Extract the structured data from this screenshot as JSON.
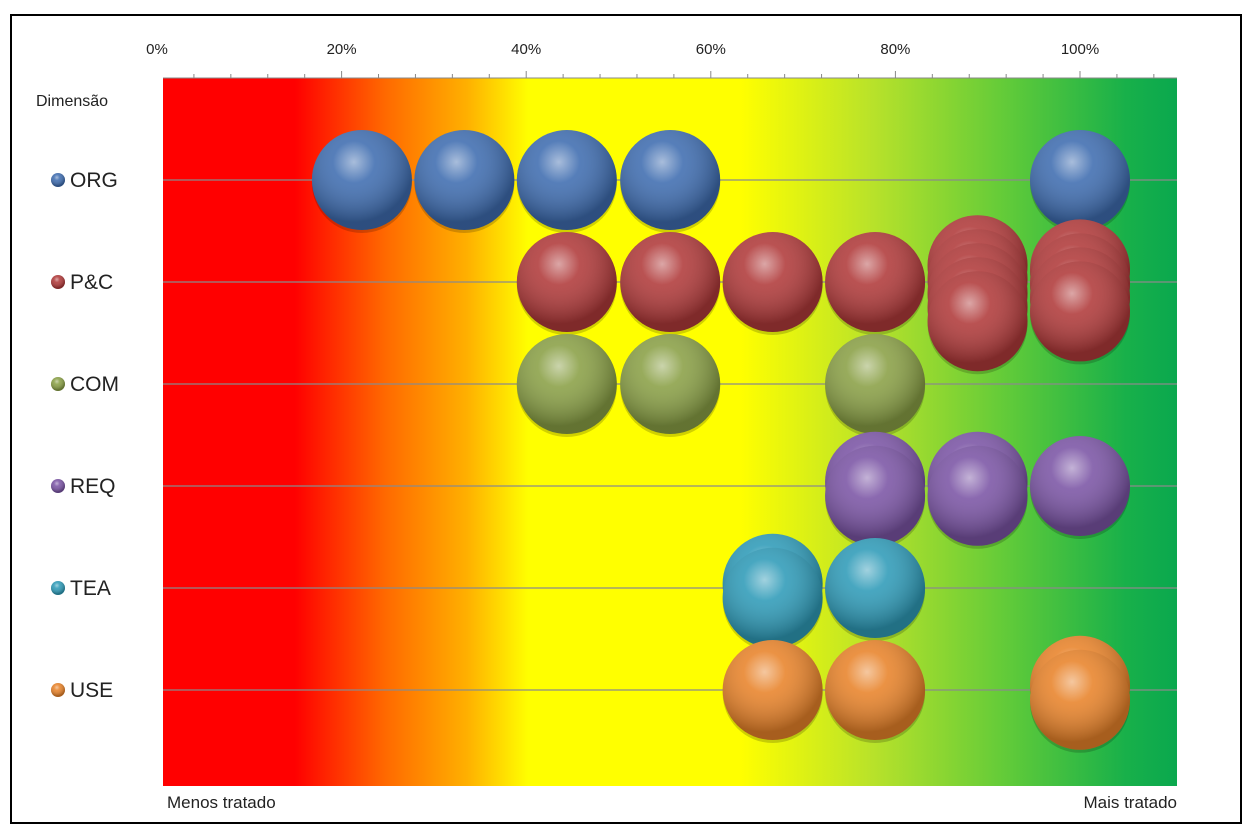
{
  "chart_data": {
    "type": "scatter",
    "y_axis_title": "Dimensão",
    "x_ticks": [
      "0%",
      "20%",
      "40%",
      "60%",
      "80%",
      "100%"
    ],
    "x_tick_values": [
      0,
      20,
      40,
      60,
      80,
      100
    ],
    "xlim": [
      0,
      110
    ],
    "left_label": "Menos tratado",
    "right_label": "Mais tratado",
    "background_gradient": "red-orange-yellow-green (low to high)",
    "gridlines": "horizontal at each category",
    "categories": [
      {
        "name": "ORG",
        "color": "#3f6db0"
      },
      {
        "name": "P&C",
        "color": "#b03a3a"
      },
      {
        "name": "COM",
        "color": "#8aa046"
      },
      {
        "name": "REQ",
        "color": "#7b55a5"
      },
      {
        "name": "TEA",
        "color": "#2f9bb8"
      },
      {
        "name": "USE",
        "color": "#e8832a"
      }
    ],
    "points": [
      {
        "category": "ORG",
        "x": 22.2
      },
      {
        "category": "ORG",
        "x": 33.3
      },
      {
        "category": "ORG",
        "x": 44.4
      },
      {
        "category": "ORG",
        "x": 55.6
      },
      {
        "category": "ORG",
        "x": 100
      },
      {
        "category": "P&C",
        "x": 44.4
      },
      {
        "category": "P&C",
        "x": 55.6
      },
      {
        "category": "P&C",
        "x": 66.7
      },
      {
        "category": "P&C",
        "x": 77.8
      },
      {
        "category": "P&C",
        "x": 88.9
      },
      {
        "category": "P&C",
        "x": 88.9
      },
      {
        "category": "P&C",
        "x": 88.9
      },
      {
        "category": "P&C",
        "x": 88.9
      },
      {
        "category": "P&C",
        "x": 88.9
      },
      {
        "category": "P&C",
        "x": 100
      },
      {
        "category": "P&C",
        "x": 100
      },
      {
        "category": "P&C",
        "x": 100
      },
      {
        "category": "P&C",
        "x": 100
      },
      {
        "category": "COM",
        "x": 44.4
      },
      {
        "category": "COM",
        "x": 55.6
      },
      {
        "category": "COM",
        "x": 77.8
      },
      {
        "category": "REQ",
        "x": 77.8
      },
      {
        "category": "REQ",
        "x": 77.8
      },
      {
        "category": "REQ",
        "x": 88.9
      },
      {
        "category": "REQ",
        "x": 88.9
      },
      {
        "category": "REQ",
        "x": 100
      },
      {
        "category": "TEA",
        "x": 66.7
      },
      {
        "category": "TEA",
        "x": 66.7
      },
      {
        "category": "TEA",
        "x": 77.8
      },
      {
        "category": "USE",
        "x": 66.7
      },
      {
        "category": "USE",
        "x": 77.8
      },
      {
        "category": "USE",
        "x": 100
      },
      {
        "category": "USE",
        "x": 100
      }
    ]
  }
}
